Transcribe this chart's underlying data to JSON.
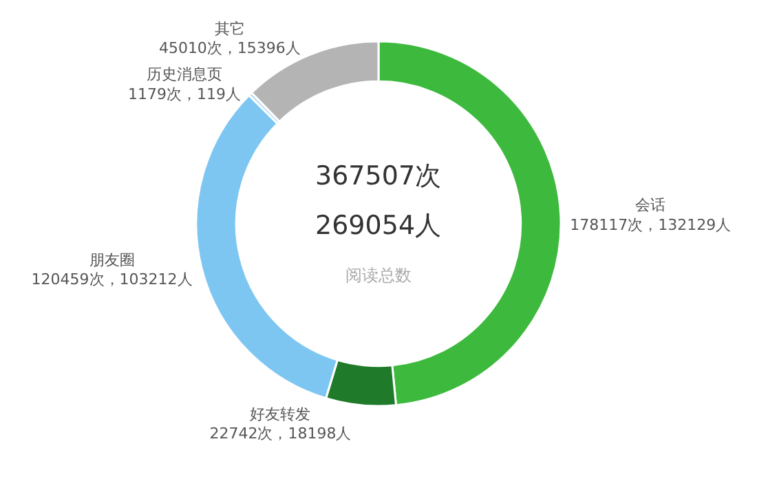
{
  "chart_data": {
    "type": "donut",
    "categories": [
      "会话",
      "好友转发",
      "朋友圈",
      "历史消息页",
      "其它"
    ],
    "values": [
      178117,
      22742,
      120459,
      1179,
      45010
    ],
    "value_labels": [
      "178117次，132129人",
      "22742次，18198人",
      "120459次，103212人",
      "1179次，119人",
      "45010次，15396人"
    ],
    "colors": [
      "#3dba3d",
      "#1f7a2a",
      "#7ec6f2",
      "#b5dcf5",
      "#b4b4b4"
    ],
    "annotations": [
      "367507次",
      "269054人",
      "阅读总数"
    ],
    "legend": false
  }
}
